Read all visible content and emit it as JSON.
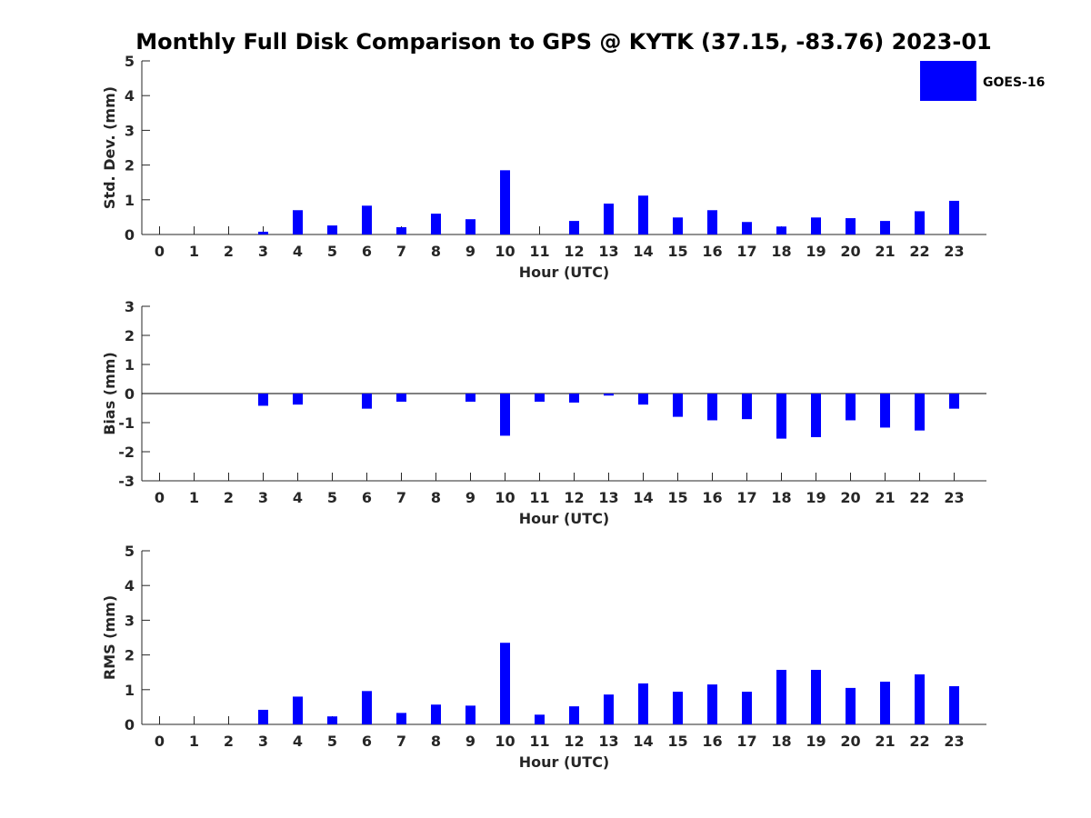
{
  "title": "Monthly Full Disk Comparison to GPS @ KYTK (37.15, -83.76) 2023-01",
  "legend": {
    "label": "GOES-16",
    "color": "#0000ff",
    "placement": "top-right"
  },
  "chart_data": [
    {
      "type": "bar",
      "series_name": "GOES-16",
      "categories": [
        "0",
        "1",
        "2",
        "3",
        "4",
        "5",
        "6",
        "7",
        "8",
        "9",
        "10",
        "11",
        "12",
        "13",
        "14",
        "15",
        "16",
        "17",
        "18",
        "19",
        "20",
        "21",
        "22",
        "23"
      ],
      "values": [
        null,
        null,
        null,
        0.08,
        0.7,
        0.26,
        0.83,
        0.21,
        0.6,
        0.44,
        1.85,
        null,
        0.39,
        0.89,
        1.12,
        0.49,
        0.7,
        0.36,
        0.23,
        0.49,
        0.47,
        0.39,
        0.67,
        0.97
      ],
      "ylabel": "Std. Dev. (mm)",
      "xlabel": "Hour (UTC)",
      "ylim": [
        0,
        5
      ],
      "yticks": [
        "0",
        "1",
        "2",
        "3",
        "4",
        "5"
      ]
    },
    {
      "type": "bar",
      "series_name": "GOES-16",
      "categories": [
        "0",
        "1",
        "2",
        "3",
        "4",
        "5",
        "6",
        "7",
        "8",
        "9",
        "10",
        "11",
        "12",
        "13",
        "14",
        "15",
        "16",
        "17",
        "18",
        "19",
        "20",
        "21",
        "22",
        "23"
      ],
      "values": [
        null,
        null,
        null,
        -0.42,
        -0.38,
        null,
        -0.52,
        -0.28,
        null,
        -0.28,
        -1.45,
        -0.28,
        -0.31,
        -0.07,
        -0.38,
        -0.8,
        -0.92,
        -0.88,
        -1.55,
        -1.5,
        -0.92,
        -1.17,
        -1.27,
        -0.52
      ],
      "ylabel": "Bias (mm)",
      "xlabel": "Hour (UTC)",
      "ylim": [
        -3,
        3
      ],
      "yticks": [
        "-3",
        "-2",
        "-1",
        "0",
        "1",
        "2",
        "3"
      ]
    },
    {
      "type": "bar",
      "series_name": "GOES-16",
      "categories": [
        "0",
        "1",
        "2",
        "3",
        "4",
        "5",
        "6",
        "7",
        "8",
        "9",
        "10",
        "11",
        "12",
        "13",
        "14",
        "15",
        "16",
        "17",
        "18",
        "19",
        "20",
        "21",
        "22",
        "23"
      ],
      "values": [
        null,
        null,
        null,
        0.42,
        0.8,
        0.23,
        0.96,
        0.33,
        0.57,
        0.54,
        2.35,
        0.28,
        0.52,
        0.86,
        1.18,
        0.94,
        1.15,
        0.94,
        1.57,
        1.57,
        1.05,
        1.23,
        1.44,
        1.1
      ],
      "ylabel": "RMS (mm)",
      "xlabel": "Hour (UTC)",
      "ylim": [
        0,
        5
      ],
      "yticks": [
        "0",
        "1",
        "2",
        "3",
        "4",
        "5"
      ]
    }
  ]
}
